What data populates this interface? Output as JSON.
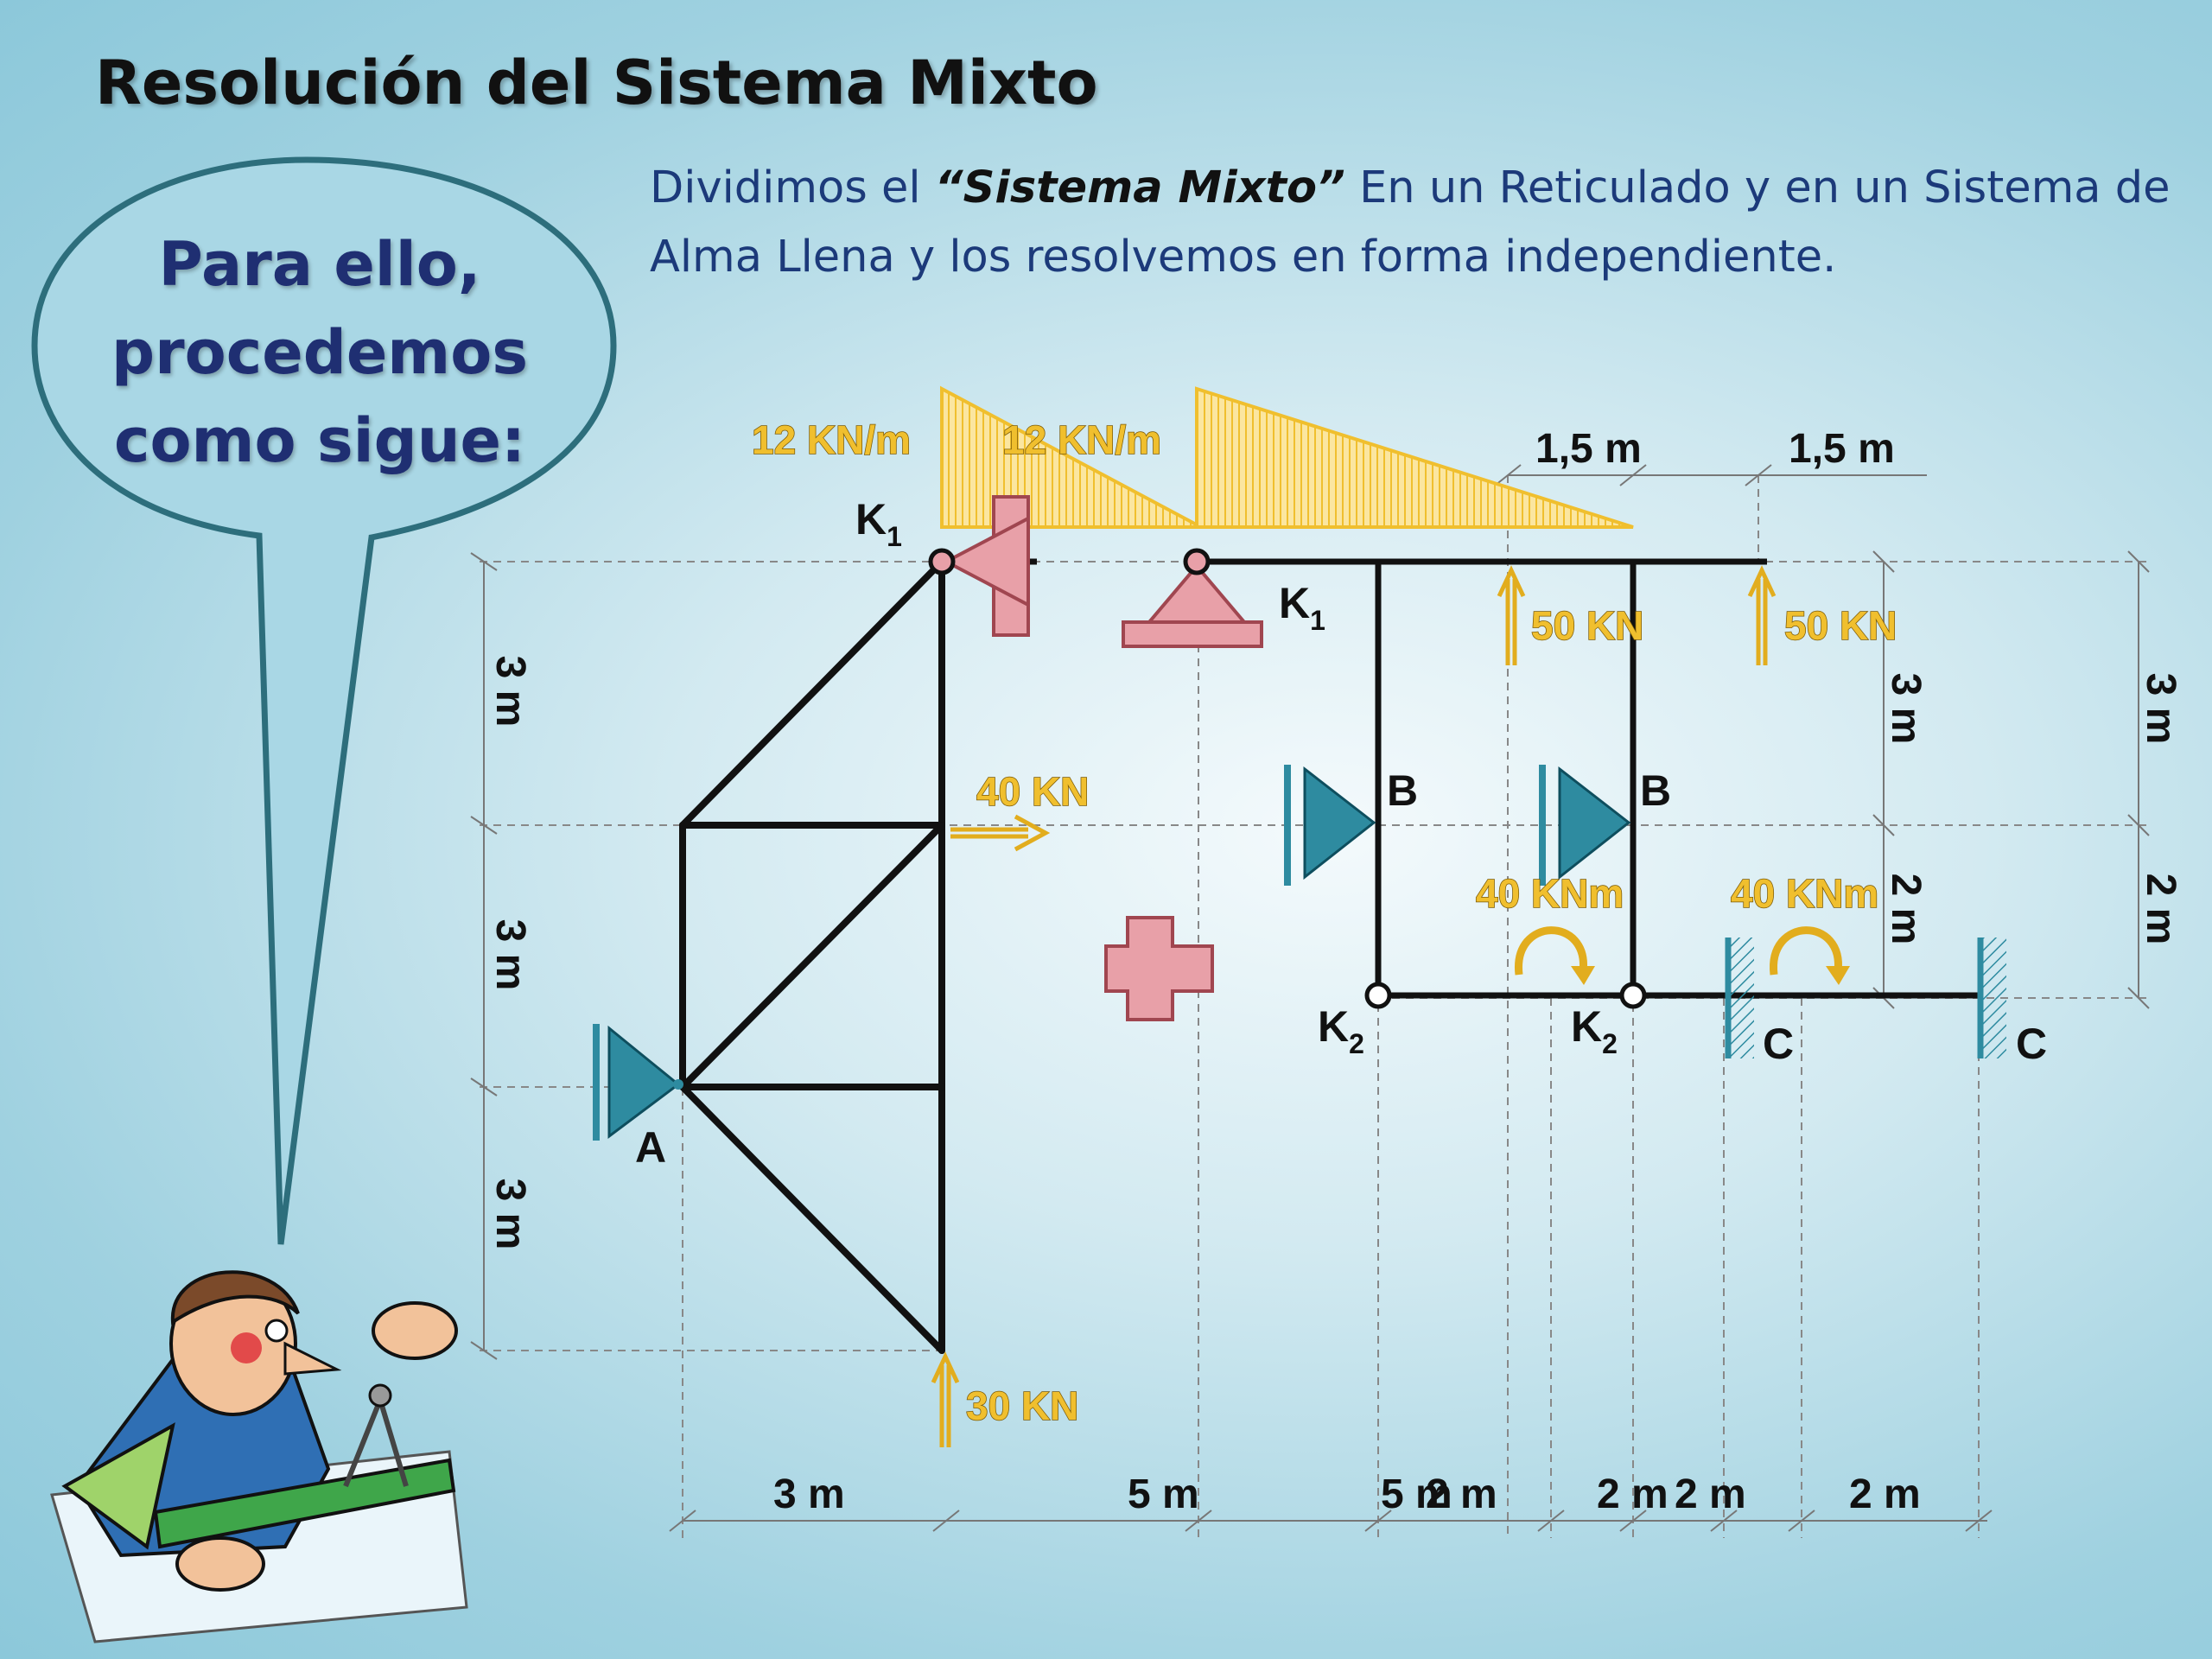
{
  "title": "Resolución del Sistema Mixto",
  "intro": {
    "part1": "Dividimos el ",
    "emphasis": "“Sistema Mixto”",
    "part2": " En un Reticulado y en un Sistema de Alma Llena y los resolvemos en forma independiente."
  },
  "bubble": {
    "line1": "Para ello,",
    "line2": "procedemos",
    "line3": "como sigue:"
  },
  "diagram": {
    "plus_symbol": "+",
    "loads": {
      "dist_left": "12 KN/m",
      "dist_right": "12 KN/m",
      "horizontal": "40 KN",
      "vertical_bottom": "30 KN",
      "up_1": "50 KN",
      "up_2": "50 KN",
      "moment_1": "40 KNm",
      "moment_2": "40 KNm"
    },
    "nodes": {
      "K": "K",
      "sub1": "1",
      "sub2": "2",
      "A": "A",
      "B": "B",
      "C": "C"
    },
    "dims": {
      "left_top": "3 m",
      "left_mid": "3 m",
      "left_bot": "3 m",
      "bottom": [
        "3 m",
        "5 m",
        "5 m",
        "2 m",
        "2 m",
        "2 m",
        "2 m"
      ],
      "top_1": "1,5 m",
      "top_2": "1,5 m",
      "right_a_top": "3 m",
      "right_a_bot": "2 m",
      "right_b_top": "3 m",
      "right_b_bot": "2 m"
    },
    "colors": {
      "load": "#f0bf2e",
      "support_pink": "#e8a0a8",
      "support_teal": "#2e8ba0",
      "bubble_border": "#2d6e7c",
      "text_blue": "#1c3a7a"
    }
  }
}
